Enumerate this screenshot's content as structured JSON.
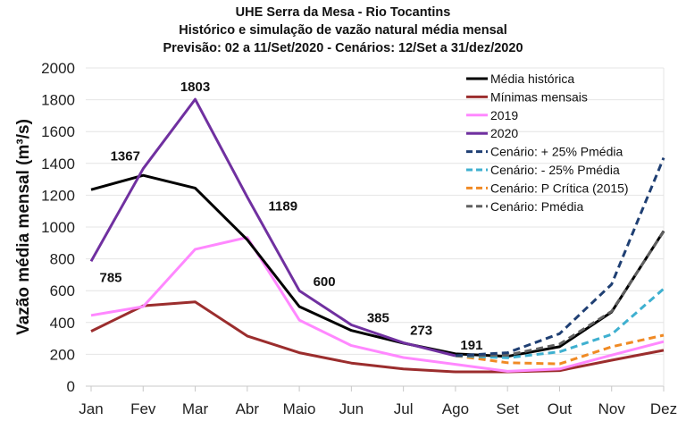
{
  "chart_data": {
    "type": "line",
    "title": [
      "UHE Serra da Mesa - Rio Tocantins",
      "Histórico e simulação de vazão natural média mensal",
      "Previsão: 02 a 11/Set/2020 - Cenários:  12/Set a 31/dez/2020"
    ],
    "xlabel": "",
    "ylabel": "Vazão média mensal (m³/s)",
    "ylim": [
      0,
      2000
    ],
    "yticks": [
      0,
      200,
      400,
      600,
      800,
      1000,
      1200,
      1400,
      1600,
      1800,
      2000
    ],
    "categories": [
      "Jan",
      "Fev",
      "Mar",
      "Abr",
      "Maio",
      "Jun",
      "Jul",
      "Ago",
      "Set",
      "Out",
      "Nov",
      "Dez"
    ],
    "grid": "horizontal",
    "legend_position": "top-right",
    "series": [
      {
        "name": "Média histórica",
        "color": "#000000",
        "dash": false,
        "values": [
          1235,
          1325,
          1245,
          920,
          500,
          350,
          270,
          203,
          187,
          248,
          466,
          975
        ]
      },
      {
        "name": "Mínimas mensais",
        "color": "#9b2d2d",
        "dash": false,
        "values": [
          345,
          505,
          530,
          315,
          210,
          145,
          108,
          90,
          90,
          98,
          163,
          225
        ]
      },
      {
        "name": "2019",
        "color": "#ff88ff",
        "dash": false,
        "values": [
          445,
          500,
          860,
          935,
          415,
          255,
          180,
          137,
          93,
          108,
          195,
          280
        ]
      },
      {
        "name": "2020",
        "color": "#7030a0",
        "dash": false,
        "values": [
          785,
          1367,
          1803,
          1189,
          600,
          385,
          273,
          191,
          null,
          null,
          null,
          null
        ]
      },
      {
        "name": "Cenário: + 25% Pmédia",
        "color": "#1f3f73",
        "dash": true,
        "values": [
          null,
          null,
          null,
          null,
          null,
          null,
          null,
          191,
          210,
          330,
          640,
          1435
        ]
      },
      {
        "name": "Cenário: - 25% Pmédia",
        "color": "#3fb0d0",
        "dash": true,
        "values": [
          null,
          null,
          null,
          null,
          null,
          null,
          null,
          191,
          178,
          216,
          325,
          612
        ]
      },
      {
        "name": "Cenário: P Crítica (2015)",
        "color": "#f08a24",
        "dash": true,
        "values": [
          null,
          null,
          null,
          null,
          null,
          null,
          null,
          191,
          147,
          140,
          247,
          320
        ]
      },
      {
        "name": "Cenário: Pmédia",
        "color": "#606060",
        "dash": true,
        "values": [
          null,
          null,
          null,
          null,
          null,
          null,
          null,
          191,
          195,
          264,
          470,
          972
        ]
      }
    ],
    "data_labels": [
      {
        "month": "Jan",
        "text": "785"
      },
      {
        "month": "Fev",
        "text": "1367"
      },
      {
        "month": "Mar",
        "text": "1803"
      },
      {
        "month": "Abr",
        "text": "1189"
      },
      {
        "month": "Maio",
        "text": "600"
      },
      {
        "month": "Jun",
        "text": "385"
      },
      {
        "month": "Jul",
        "text": "273"
      },
      {
        "month": "Ago",
        "text": "191"
      }
    ]
  }
}
